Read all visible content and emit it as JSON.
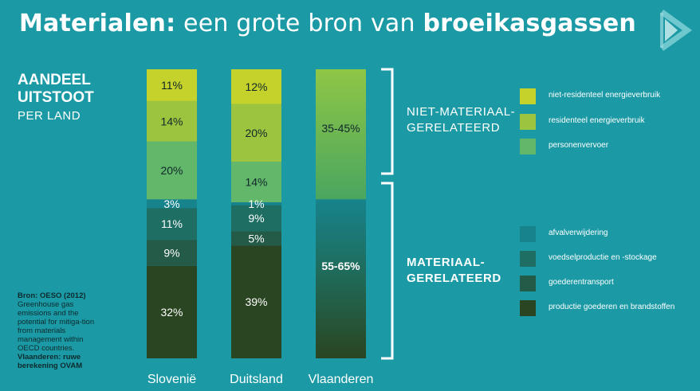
{
  "title": {
    "part1": "Materialen:",
    "part2": " een grote bron van ",
    "part3": "broeikasgassen"
  },
  "panel": {
    "title_line1": "AANDEEL",
    "title_line2": "UITSTOOT",
    "subtitle": "PER LAND"
  },
  "source": {
    "label": "Bron: OESO (2012)",
    "text": "Greenhouse gas emissions and the potential for mitiga-tion from materials management within OECD countries.",
    "label2": "Vlaanderen: ruwe berekening OVAM"
  },
  "groups": {
    "non_material": {
      "line1": "NIET-MATERIAAL-",
      "line2": "GERELATEERD"
    },
    "material": {
      "line1": "MATERIAAL-",
      "line2": "GERELATEERD"
    }
  },
  "colors": {
    "background": "#1b9aa6",
    "niet_residenteel": "#c5d22b",
    "residenteel": "#9cc43f",
    "personenvervoer": "#63b76a",
    "afvalverwijdering": "#17838c",
    "voedsel": "#1e6e64",
    "goederentransport": "#245a48",
    "productie": "#2a4521"
  },
  "chart_data": {
    "type": "bar",
    "stacked": true,
    "categories": [
      "Slovenië",
      "Duitsland",
      "Vlaanderen"
    ],
    "series": [
      {
        "name": "productie goederen en brandstoffen",
        "color": "#2a4521",
        "values": [
          32,
          39,
          null
        ],
        "labels": [
          "32%",
          "39%",
          ""
        ]
      },
      {
        "name": "goederentransport",
        "color": "#245a48",
        "values": [
          9,
          5,
          null
        ],
        "labels": [
          "9%",
          "5%",
          ""
        ]
      },
      {
        "name": "voedselproductie en -stockage",
        "color": "#1e6e64",
        "values": [
          11,
          9,
          null
        ],
        "labels": [
          "11%",
          "9%",
          ""
        ]
      },
      {
        "name": "afvalverwijdering",
        "color": "#17838c",
        "values": [
          3,
          1,
          null
        ],
        "labels": [
          "3%",
          "1%",
          ""
        ]
      },
      {
        "name": "personenvervoer",
        "color": "#63b76a",
        "values": [
          20,
          14,
          null
        ],
        "labels": [
          "20%",
          "14%",
          ""
        ]
      },
      {
        "name": "residenteel energieverbruik",
        "color": "#9cc43f",
        "values": [
          14,
          20,
          null
        ],
        "labels": [
          "14%",
          "20%",
          ""
        ]
      },
      {
        "name": "niet-residenteel energieverbruik",
        "color": "#c5d22b",
        "values": [
          11,
          12,
          null
        ],
        "labels": [
          "11%",
          "12%",
          ""
        ]
      }
    ],
    "ranges": {
      "category": "Vlaanderen",
      "material": {
        "min": 55,
        "max": 65,
        "label": "55-65%"
      },
      "non_material": {
        "min": 35,
        "max": 45,
        "label": "35-45%"
      }
    },
    "legend": {
      "non_material": [
        "niet-residenteel energieverbruik",
        "residenteel energieverbruik",
        "personenvervoer"
      ],
      "material": [
        "afvalverwijdering",
        "voedselproductie en -stockage",
        "goederentransport",
        "productie goederen en brandstoffen"
      ]
    }
  }
}
